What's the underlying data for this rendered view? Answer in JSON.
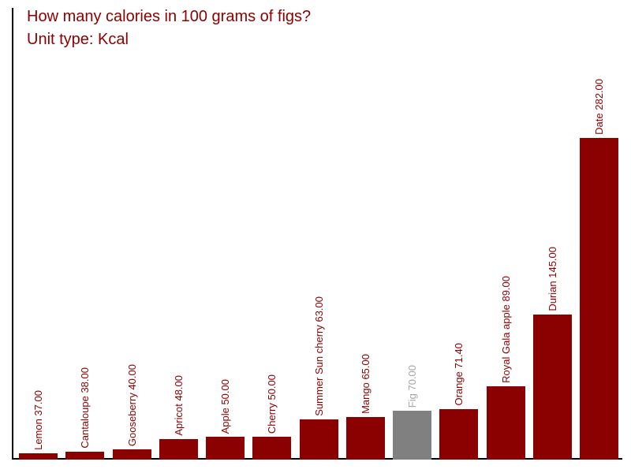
{
  "header": {
    "title": "How many calories in 100 grams of figs?",
    "subtitle": "Unit type: Kcal"
  },
  "colors": {
    "title": "#8b0000",
    "bar": "#8b0000",
    "bar_highlight": "#808080",
    "label": "#8b0000",
    "label_highlight": "#a6a6a6",
    "axis": "#000000",
    "background": "#ffffff"
  },
  "chart_data": {
    "type": "bar",
    "title": "How many calories in 100 grams of figs?",
    "subtitle": "Unit type: Kcal",
    "unit": "Kcal",
    "categories": [
      "Lemon",
      "Cantaloupe",
      "Gooseberry",
      "Apricot",
      "Apple",
      "Cherry",
      "Summer Sun cherry",
      "Mango",
      "Fig",
      "Orange",
      "Royal Gala apple",
      "Durian",
      "Date"
    ],
    "values": [
      37,
      38,
      40,
      48,
      50,
      50,
      63,
      65,
      70,
      71.4,
      89,
      145,
      282
    ],
    "bar_labels": [
      "Lemon 37.00",
      "Cantaloupe 38.00",
      "Gooseberry 40.00",
      "Apricot 48.00",
      "Apple 50.00",
      "Cherry 50.00",
      "Summer Sun cherry 63.00",
      "Mango 65.00",
      "Fig 70.00",
      "Orange 71.40",
      "Royal Gala apple 89.00",
      "Durian 145.00",
      "Date 282.00"
    ],
    "highlight_index": 8,
    "highlighted_category": "Fig",
    "xlabel": "",
    "ylabel": "",
    "ylim": [
      32,
      383
    ],
    "grid": false,
    "legend": false,
    "orientation": "vertical",
    "label_rotation_deg": 90
  }
}
